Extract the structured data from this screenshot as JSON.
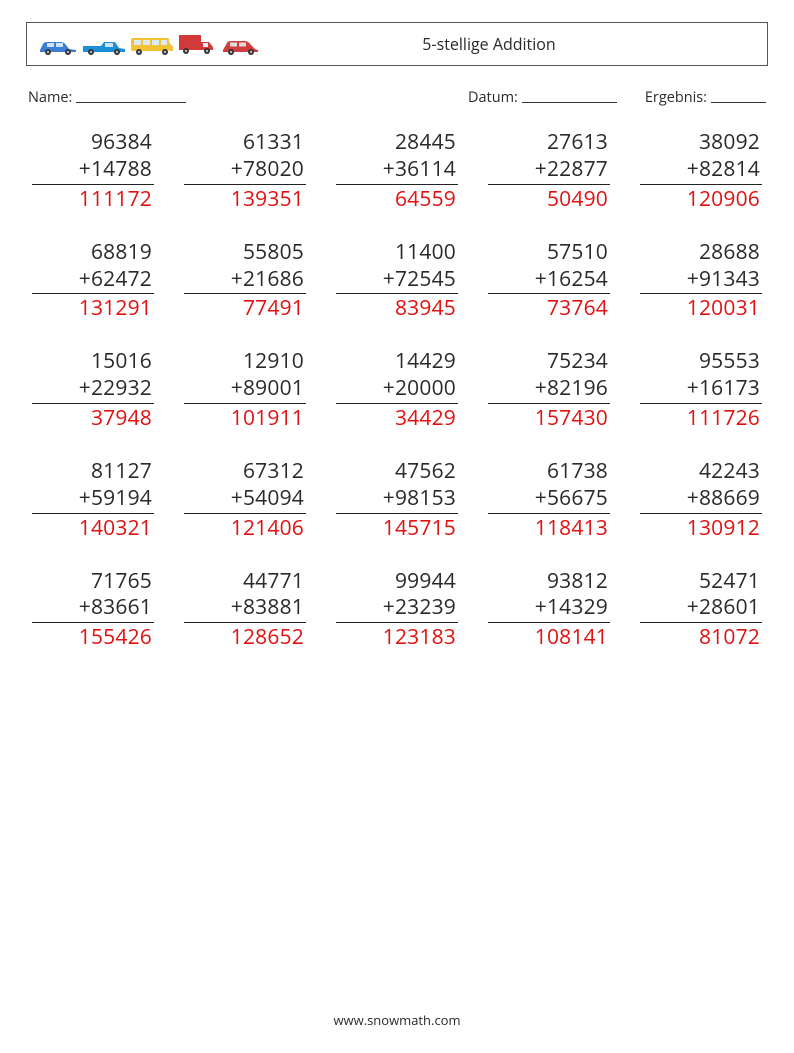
{
  "header": {
    "title": "5-stellige Addition"
  },
  "meta": {
    "name_label": "Name:",
    "date_label": "Datum:",
    "score_label": "Ergebnis:"
  },
  "style": {
    "text_color": "#2a2a2a",
    "answer_color": "#e11111",
    "border_color": "#555555",
    "background": "#ffffff",
    "font_size_problem": 21,
    "font_size_title": 16,
    "font_size_meta": 14.5,
    "columns": 5,
    "rows": 5
  },
  "vehicle_colors": {
    "car1": "#3a7fd4",
    "pickup": "#1f8fd8",
    "van": "#f2c233",
    "truck": "#d23a3a",
    "car2": "#cf3d3d"
  },
  "problems": [
    {
      "a": "96384",
      "b": "14788",
      "sum": "111172"
    },
    {
      "a": "61331",
      "b": "78020",
      "sum": "139351"
    },
    {
      "a": "28445",
      "b": "36114",
      "sum": "64559"
    },
    {
      "a": "27613",
      "b": "22877",
      "sum": "50490"
    },
    {
      "a": "38092",
      "b": "82814",
      "sum": "120906"
    },
    {
      "a": "68819",
      "b": "62472",
      "sum": "131291"
    },
    {
      "a": "55805",
      "b": "21686",
      "sum": "77491"
    },
    {
      "a": "11400",
      "b": "72545",
      "sum": "83945"
    },
    {
      "a": "57510",
      "b": "16254",
      "sum": "73764"
    },
    {
      "a": "28688",
      "b": "91343",
      "sum": "120031"
    },
    {
      "a": "15016",
      "b": "22932",
      "sum": "37948"
    },
    {
      "a": "12910",
      "b": "89001",
      "sum": "101911"
    },
    {
      "a": "14429",
      "b": "20000",
      "sum": "34429"
    },
    {
      "a": "75234",
      "b": "82196",
      "sum": "157430"
    },
    {
      "a": "95553",
      "b": "16173",
      "sum": "111726"
    },
    {
      "a": "81127",
      "b": "59194",
      "sum": "140321"
    },
    {
      "a": "67312",
      "b": "54094",
      "sum": "121406"
    },
    {
      "a": "47562",
      "b": "98153",
      "sum": "145715"
    },
    {
      "a": "61738",
      "b": "56675",
      "sum": "118413"
    },
    {
      "a": "42243",
      "b": "88669",
      "sum": "130912"
    },
    {
      "a": "71765",
      "b": "83661",
      "sum": "155426"
    },
    {
      "a": "44771",
      "b": "83881",
      "sum": "128652"
    },
    {
      "a": "99944",
      "b": "23239",
      "sum": "123183"
    },
    {
      "a": "93812",
      "b": "14329",
      "sum": "108141"
    },
    {
      "a": "52471",
      "b": "28601",
      "sum": "81072"
    }
  ],
  "footer": {
    "text": "www.snowmath.com"
  }
}
